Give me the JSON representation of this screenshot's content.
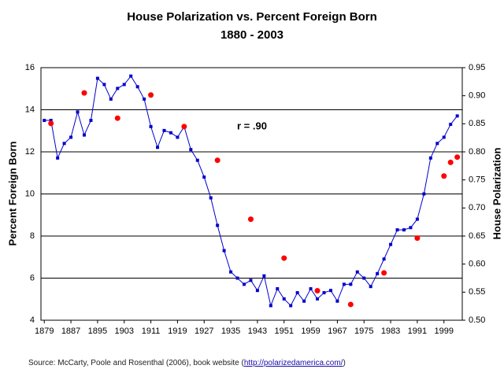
{
  "chart_data": {
    "type": "line",
    "title": "House Polarization vs. Percent Foreign Born",
    "subtitle": "1880 - 2003",
    "y_label": "Percent Foreign Born",
    "y2_label": "House Polarization",
    "annotation": "r = .90",
    "source": "Source:  McCarty, Poole and Rosenthal (2006), book website (",
    "source_link": "http://polarizedamerica.com/",
    "source_end": ")",
    "xlim": [
      1878,
      2004.5
    ],
    "xticks": [
      1879,
      1887,
      1895,
      1903,
      1911,
      1919,
      1927,
      1935,
      1943,
      1951,
      1959,
      1967,
      1975,
      1983,
      1991,
      1999
    ],
    "ylim": [
      4,
      16
    ],
    "yticks": [
      4,
      6,
      8,
      10,
      12,
      14,
      16
    ],
    "y2lim": [
      0.5,
      0.95
    ],
    "y2ticks": [
      {
        "value": 0.5,
        "label": "0.50"
      },
      0.55,
      {
        "value": 0.6,
        "label": "0.60"
      },
      0.65,
      {
        "value": 0.7,
        "label": "0.70"
      },
      0.75,
      {
        "value": 0.8,
        "label": "0.80"
      },
      0.85,
      {
        "value": 0.9,
        "label": "0.90"
      },
      0.95
    ],
    "grid": true,
    "series": [
      {
        "type": "line",
        "axis": "y2",
        "color": "#0000cc",
        "x": [
          1879,
          1881,
          1883,
          1885,
          1887,
          1889,
          1891,
          1893,
          1895,
          1897,
          1899,
          1901,
          1903,
          1905,
          1907,
          1909,
          1911,
          1913,
          1915,
          1917,
          1919,
          1921,
          1923,
          1925,
          1927,
          1929,
          1931,
          1933,
          1935,
          1937,
          1939,
          1941,
          1943,
          1945,
          1947,
          1949,
          1951,
          1953,
          1955,
          1957,
          1959,
          1961,
          1963,
          1965,
          1967,
          1969,
          1971,
          1973,
          1975,
          1977,
          1979,
          1981,
          1983,
          1985,
          1987,
          1989,
          1991,
          1993,
          1995,
          1997,
          1999,
          2001,
          2003
        ],
        "values": [
          0.856,
          0.856,
          0.789,
          0.815,
          0.826,
          0.871,
          0.83,
          0.856,
          0.931,
          0.92,
          0.894,
          0.913,
          0.92,
          0.935,
          0.916,
          0.894,
          0.845,
          0.808,
          0.838,
          0.834,
          0.826,
          0.845,
          0.804,
          0.785,
          0.755,
          0.718,
          0.669,
          0.624,
          0.586,
          0.575,
          0.564,
          0.571,
          0.553,
          0.579,
          0.526,
          0.556,
          0.538,
          0.526,
          0.549,
          0.534,
          0.556,
          0.538,
          0.549,
          0.553,
          0.534,
          0.564,
          0.564,
          0.586,
          0.575,
          0.56,
          0.583,
          0.609,
          0.635,
          0.661,
          0.661,
          0.665,
          0.68,
          0.725,
          0.789,
          0.815,
          0.826,
          0.849,
          0.864
        ]
      },
      {
        "type": "scatter",
        "axis": "y",
        "color": "#ff0000",
        "x": [
          1881,
          1891,
          1901,
          1911,
          1921,
          1931,
          1941,
          1951,
          1961,
          1971,
          1981,
          1991,
          1999,
          2001,
          2003
        ],
        "values": [
          13.35,
          14.8,
          13.6,
          14.7,
          13.2,
          11.6,
          8.8,
          6.95,
          5.4,
          4.75,
          6.25,
          7.9,
          10.85,
          11.5,
          11.75
        ]
      }
    ]
  }
}
